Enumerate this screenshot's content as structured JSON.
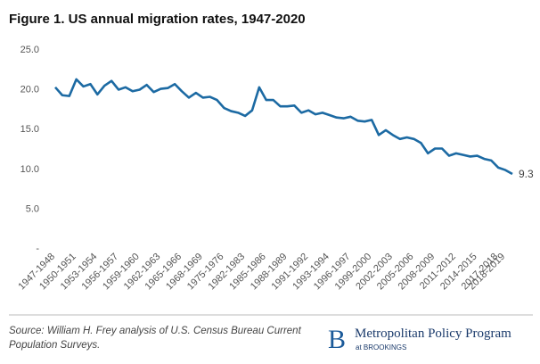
{
  "chart_data": {
    "type": "line",
    "title": "Figure 1. US annual migration rates, 1947-2020",
    "categories": [
      "1947-1948",
      null,
      null,
      "1950-1951",
      null,
      null,
      "1953-1954",
      null,
      null,
      "1956-1957",
      null,
      null,
      "1959-1960",
      null,
      null,
      "1962-1963",
      null,
      null,
      "1965-1966",
      null,
      null,
      "1968-1969",
      null,
      null,
      "1975-1976",
      null,
      null,
      "1982-1983",
      null,
      null,
      "1985-1986",
      null,
      null,
      "1988-1989",
      null,
      null,
      "1991-1992",
      null,
      null,
      "1993-1994",
      null,
      null,
      "1996-1997",
      null,
      null,
      "1999-2000",
      null,
      null,
      "2002-2003",
      null,
      null,
      "2005-2006",
      null,
      null,
      "2008-2009",
      null,
      null,
      "2011-2012",
      null,
      null,
      "2014-2015",
      null,
      null,
      "2017-2018",
      "2018-2019",
      null
    ],
    "values": [
      20.2,
      19.2,
      19.1,
      21.2,
      20.3,
      20.6,
      19.3,
      20.4,
      21.0,
      19.9,
      20.2,
      19.7,
      19.9,
      20.5,
      19.6,
      20.0,
      20.1,
      20.6,
      19.7,
      18.9,
      19.5,
      18.9,
      19.0,
      18.6,
      17.6,
      17.2,
      17.0,
      16.6,
      17.3,
      20.2,
      18.6,
      18.6,
      17.8,
      17.8,
      17.9,
      17.0,
      17.3,
      16.8,
      17.0,
      16.7,
      16.4,
      16.3,
      16.5,
      16.0,
      15.9,
      16.1,
      14.2,
      14.8,
      14.2,
      13.7,
      13.9,
      13.7,
      13.2,
      11.9,
      12.5,
      12.5,
      11.6,
      11.9,
      11.7,
      11.5,
      11.6,
      11.2,
      11.0,
      10.1,
      9.8,
      9.3
    ],
    "color": "#1c6aa3",
    "ylim": [
      0,
      25
    ],
    "yticks": [
      {
        "value": 0,
        "label": "-"
      },
      {
        "value": 5,
        "label": "5.0"
      },
      {
        "value": 10,
        "label": "10.0"
      },
      {
        "value": 15,
        "label": "15.0"
      },
      {
        "value": 20,
        "label": "20.0"
      },
      {
        "value": 25,
        "label": "25.0"
      }
    ],
    "grid": false,
    "source": [
      "Source: William H. Frey analysis of U.S. Census Bureau Current",
      "Population Surveys."
    ],
    "brand": {
      "letter": "B",
      "name": "Metropolitan Policy Program",
      "sub": "at BROOKINGS"
    }
  }
}
